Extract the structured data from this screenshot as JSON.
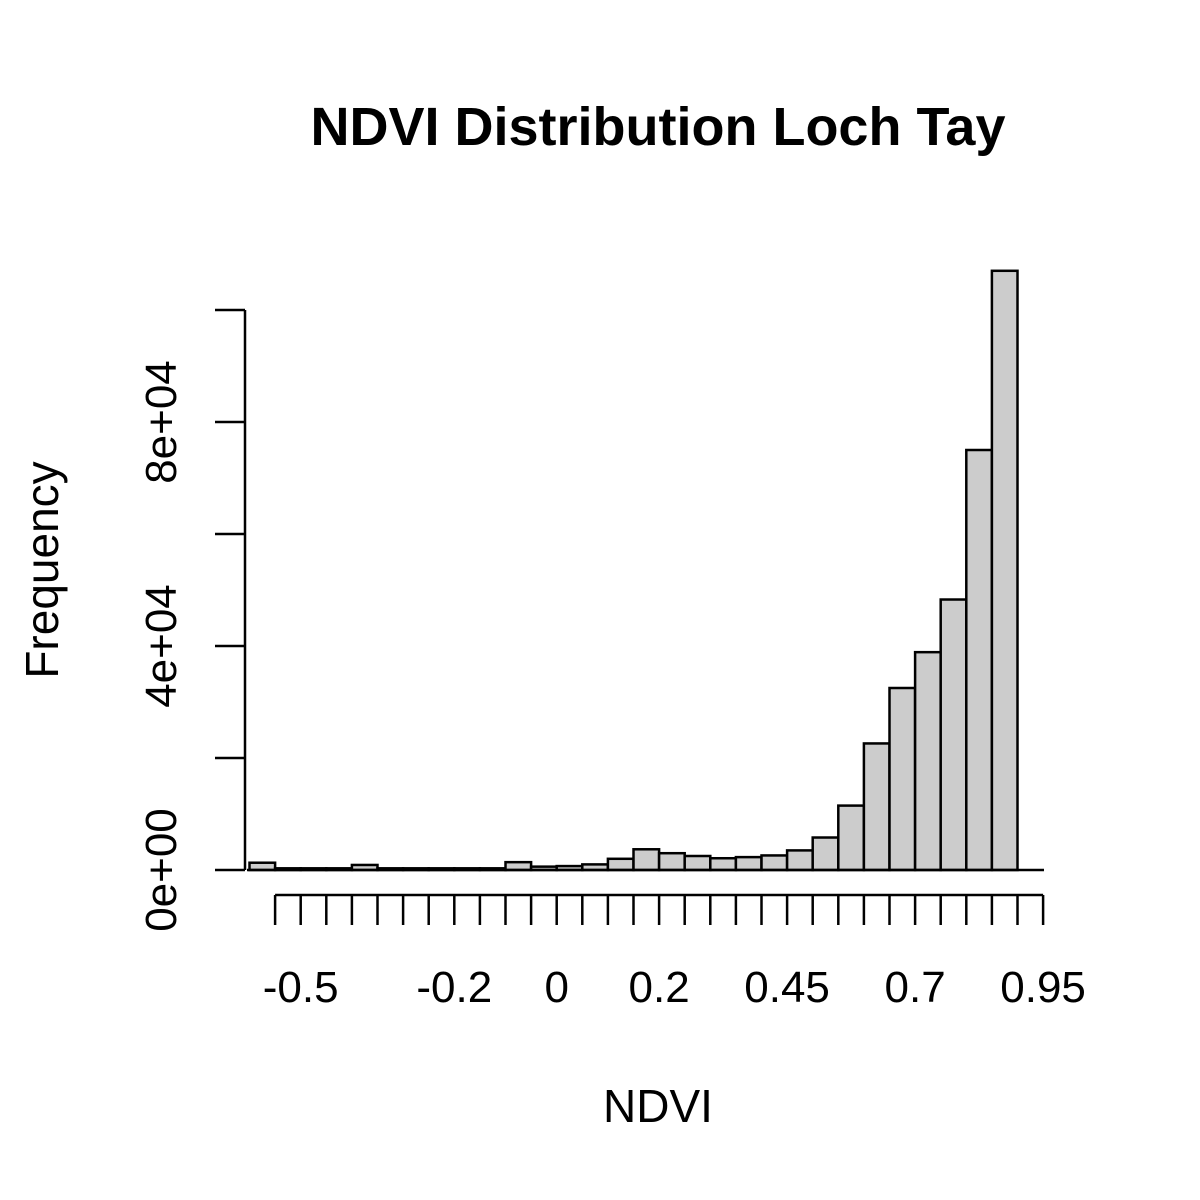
{
  "chart_data": {
    "type": "bar",
    "title": "NDVI Distribution Loch Tay",
    "xlabel": "NDVI",
    "ylabel": "Frequency",
    "x_tick_labels": [
      "-0.5",
      "-0.2",
      "0",
      "0.2",
      "0.45",
      "0.7",
      "0.95"
    ],
    "y_tick_labels": [
      "0e+00",
      "4e+04",
      "8e+04"
    ],
    "ylim": [
      0,
      100000
    ],
    "bin_width": 0.05,
    "bin_start": -0.6,
    "bins": [
      {
        "lo": -0.6,
        "hi": -0.55,
        "count": 1300
      },
      {
        "lo": -0.55,
        "hi": -0.5,
        "count": 300
      },
      {
        "lo": -0.5,
        "hi": -0.45,
        "count": 300
      },
      {
        "lo": -0.45,
        "hi": -0.4,
        "count": 300
      },
      {
        "lo": -0.4,
        "hi": -0.35,
        "count": 900
      },
      {
        "lo": -0.35,
        "hi": -0.3,
        "count": 300
      },
      {
        "lo": -0.3,
        "hi": -0.25,
        "count": 300
      },
      {
        "lo": -0.25,
        "hi": -0.2,
        "count": 300
      },
      {
        "lo": -0.2,
        "hi": -0.15,
        "count": 300
      },
      {
        "lo": -0.15,
        "hi": -0.1,
        "count": 300
      },
      {
        "lo": -0.1,
        "hi": -0.05,
        "count": 1400
      },
      {
        "lo": -0.05,
        "hi": 0.0,
        "count": 600
      },
      {
        "lo": 0.0,
        "hi": 0.05,
        "count": 700
      },
      {
        "lo": 0.05,
        "hi": 0.1,
        "count": 1000
      },
      {
        "lo": 0.1,
        "hi": 0.15,
        "count": 2000
      },
      {
        "lo": 0.15,
        "hi": 0.2,
        "count": 3700
      },
      {
        "lo": 0.2,
        "hi": 0.25,
        "count": 3000
      },
      {
        "lo": 0.25,
        "hi": 0.3,
        "count": 2500
      },
      {
        "lo": 0.3,
        "hi": 0.35,
        "count": 2100
      },
      {
        "lo": 0.35,
        "hi": 0.4,
        "count": 2300
      },
      {
        "lo": 0.4,
        "hi": 0.45,
        "count": 2600
      },
      {
        "lo": 0.45,
        "hi": 0.5,
        "count": 3500
      },
      {
        "lo": 0.5,
        "hi": 0.55,
        "count": 5800
      },
      {
        "lo": 0.55,
        "hi": 0.6,
        "count": 11500
      },
      {
        "lo": 0.6,
        "hi": 0.65,
        "count": 22600
      },
      {
        "lo": 0.65,
        "hi": 0.7,
        "count": 32500
      },
      {
        "lo": 0.7,
        "hi": 0.75,
        "count": 38900
      },
      {
        "lo": 0.75,
        "hi": 0.8,
        "count": 48300
      },
      {
        "lo": 0.8,
        "hi": 0.85,
        "count": 75000
      },
      {
        "lo": 0.85,
        "hi": 0.9,
        "count": 107000
      }
    ],
    "grid": false,
    "legend": "none",
    "bar_color": "#cccccc"
  }
}
